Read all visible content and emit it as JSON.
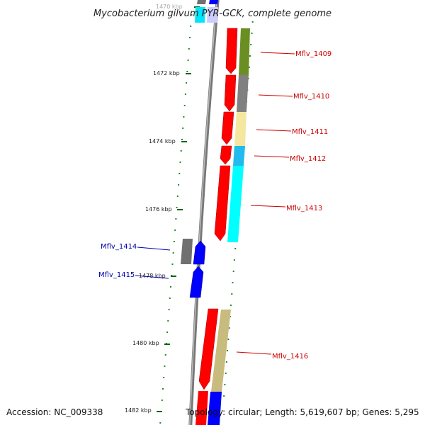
{
  "title": "Mycobacterium gilvum PYR-GCK, complete genome",
  "accession": "Accession: NC_009338",
  "summary": "Topology: circular; Length: 5,619,607 bp; Genes: 5,295",
  "ticks": [
    "1470 kbp",
    "1472 kbp",
    "1474 kbp",
    "1476 kbp",
    "1478 kbp",
    "1480 kbp",
    "1482 kbp"
  ],
  "genes_plus_strand": [
    {
      "name": "Mflv_1409",
      "cog_color": "#6b8e23"
    },
    {
      "name": "Mflv_1410",
      "cog_color": "#808080"
    },
    {
      "name": "Mflv_1411",
      "cog_color": "#f5e6a0"
    },
    {
      "name": "Mflv_1412",
      "cog_color": "#22bbee"
    },
    {
      "name": "Mflv_1413",
      "cog_color": "#00ffff"
    },
    {
      "name": "Mflv_1416",
      "cog_color": "#c8bb7e"
    }
  ],
  "genes_minus_strand": [
    {
      "name": "Mflv_1414",
      "cog_color": "#707070"
    },
    {
      "name": "Mflv_1415",
      "cog_color": "#0000ff"
    }
  ],
  "colors": {
    "plus_strand_label": "#cc0000",
    "minus_strand_label": "#0000aa",
    "cds": "#ff0000",
    "minus_cds": "#0000ff",
    "backbone": "#808080",
    "tick": "#006400"
  }
}
